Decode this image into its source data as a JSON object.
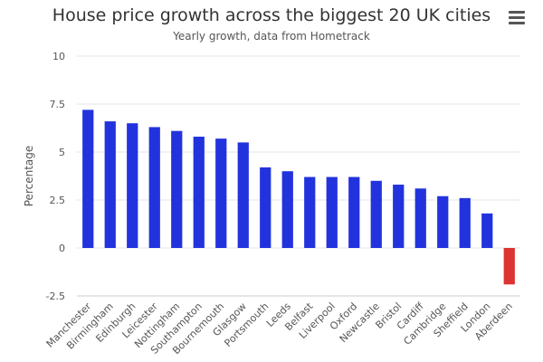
{
  "header": {
    "menu_icon": "hamburger-menu-icon"
  },
  "colors": {
    "positive_bar": "#2233dd",
    "negative_bar": "#dd3333",
    "grid": "#e6e6e6"
  },
  "chart_data": {
    "type": "bar",
    "title": "House price growth across the biggest 20 UK cities",
    "subtitle": "Yearly growth, data from Hometrack",
    "xlabel": "",
    "ylabel": "Percentage",
    "ylim": [
      -2.5,
      10
    ],
    "yticks": [
      "-2.5",
      "0",
      "2.5",
      "5",
      "7.5",
      "10"
    ],
    "ytick_values": [
      -2.5,
      0,
      2.5,
      5,
      7.5,
      10
    ],
    "grid": true,
    "legend": "none",
    "categories": [
      "Manchester",
      "Birmingham",
      "Edinburgh",
      "Leicester",
      "Nottingham",
      "Southampton",
      "Bournemouth",
      "Glasgow",
      "Portsmouth",
      "Leeds",
      "Belfast",
      "Liverpool",
      "Oxford",
      "Newcastle",
      "Bristol",
      "Cardiff",
      "Cambridge",
      "Sheffield",
      "London",
      "Aberdeen"
    ],
    "values": [
      7.2,
      6.6,
      6.5,
      6.3,
      6.1,
      5.8,
      5.7,
      5.5,
      4.2,
      4.0,
      3.7,
      3.7,
      3.7,
      3.5,
      3.3,
      3.1,
      2.7,
      2.6,
      1.8,
      -1.9
    ]
  }
}
